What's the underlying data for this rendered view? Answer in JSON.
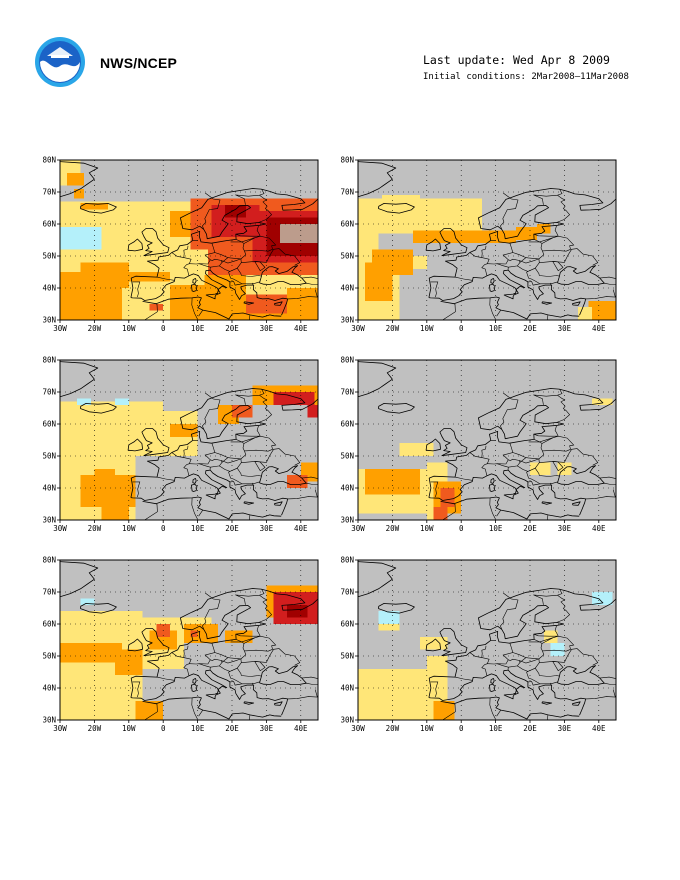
{
  "header": {
    "agency": "NWS/NCEP",
    "last_update": "Last update: Wed Apr 8 2009",
    "initial_conditions": "Initial conditions: 2Mar2008–11Mar2008"
  },
  "map_axes": {
    "lon_ticks": [
      "30W",
      "20W",
      "10W",
      "0",
      "10E",
      "20E",
      "30E",
      "40E"
    ],
    "lat_ticks": [
      "80N",
      "70N",
      "60N",
      "50N",
      "40N",
      "30N"
    ],
    "lon_range": [
      -30,
      45
    ],
    "lat_range": [
      30,
      80
    ]
  },
  "colors": {
    "land_ocean_neutral": "#c0c0c0",
    "light_blue": "#b4f0fa",
    "light_yellow": "#ffe678",
    "orange": "#ffa000",
    "orange_red": "#f05a1e",
    "red": "#d21e1e",
    "dark_red": "#a00000",
    "brown": "#bc9c8c"
  },
  "panels": [
    {
      "id": "row1-left"
    },
    {
      "id": "row1-right"
    },
    {
      "id": "row2-left"
    },
    {
      "id": "row2-right"
    },
    {
      "id": "row3-left"
    },
    {
      "id": "row3-right"
    }
  ]
}
